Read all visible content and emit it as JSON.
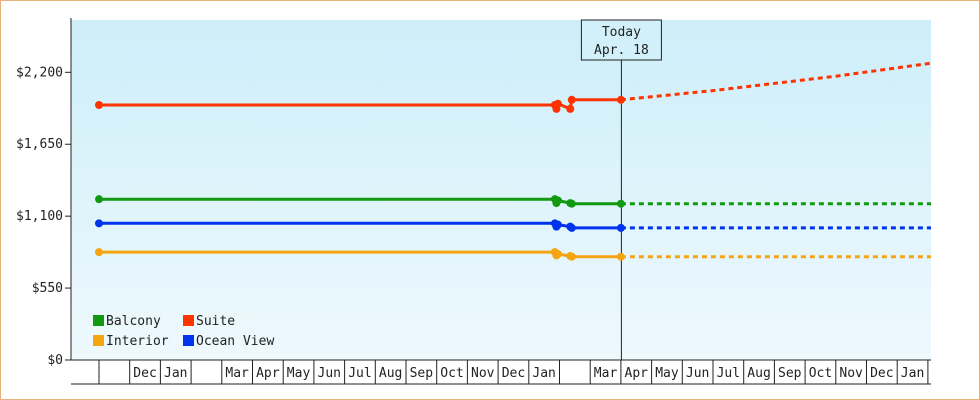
{
  "chart_data": {
    "type": "line",
    "title": "",
    "xlabel": "",
    "ylabel": "",
    "ylim": [
      0,
      2600
    ],
    "yticks": [
      0,
      550,
      1100,
      1650,
      2200
    ],
    "ytick_labels": [
      "$0",
      "$550",
      "$1,100",
      "$1,650",
      "$2,200"
    ],
    "x_months": [
      "",
      "Dec",
      "Jan",
      "",
      "Mar",
      "Apr",
      "May",
      "Jun",
      "Jul",
      "Aug",
      "Sep",
      "Oct",
      "Nov",
      "Dec",
      "Jan",
      "",
      "Mar",
      "Apr",
      "May",
      "Jun",
      "Jul",
      "Aug",
      "Sep",
      "Oct",
      "Nov",
      "Dec",
      "Jan",
      ""
    ],
    "today": {
      "line1": "Today",
      "line2": "Apr. 18",
      "month_index": 17
    },
    "legend_placement": "bottom-left",
    "grid": false,
    "background": [
      "#cdeef9",
      "#eef9fd"
    ],
    "series": [
      {
        "name": "Suite",
        "color": "#ff3300",
        "points": [
          [
            0,
            1950
          ],
          [
            14.85,
            1950
          ],
          [
            14.9,
            1920
          ],
          [
            14.95,
            1960
          ],
          [
            15.35,
            1920
          ],
          [
            15.4,
            1990
          ],
          [
            17.0,
            1990
          ]
        ],
        "forecast": [
          [
            17.0,
            1990
          ],
          [
            20.0,
            2060
          ],
          [
            24.0,
            2170
          ],
          [
            28.0,
            2270
          ]
        ]
      },
      {
        "name": "Balcony",
        "color": "#119911",
        "points": [
          [
            0,
            1230
          ],
          [
            14.85,
            1230
          ],
          [
            14.9,
            1200
          ],
          [
            14.95,
            1220
          ],
          [
            15.35,
            1200
          ],
          [
            15.4,
            1195
          ],
          [
            17.0,
            1195
          ]
        ],
        "forecast": [
          [
            17.0,
            1195
          ],
          [
            28.0,
            1195
          ]
        ]
      },
      {
        "name": "Ocean View",
        "color": "#0033ee",
        "points": [
          [
            0,
            1045
          ],
          [
            14.85,
            1045
          ],
          [
            14.9,
            1020
          ],
          [
            14.95,
            1035
          ],
          [
            15.35,
            1020
          ],
          [
            15.4,
            1010
          ],
          [
            17.0,
            1010
          ]
        ],
        "forecast": [
          [
            17.0,
            1010
          ],
          [
            28.0,
            1010
          ]
        ]
      },
      {
        "name": "Interior",
        "color": "#f5a511",
        "points": [
          [
            0,
            825
          ],
          [
            14.85,
            825
          ],
          [
            14.9,
            800
          ],
          [
            14.95,
            810
          ],
          [
            15.35,
            795
          ],
          [
            15.4,
            790
          ],
          [
            17.0,
            790
          ]
        ],
        "forecast": [
          [
            17.0,
            790
          ],
          [
            28.0,
            790
          ]
        ]
      }
    ],
    "legend": [
      {
        "name": "Balcony",
        "color": "#119911"
      },
      {
        "name": "Suite",
        "color": "#ff3300"
      },
      {
        "name": "Interior",
        "color": "#f5a511"
      },
      {
        "name": "Ocean View",
        "color": "#0033ee"
      }
    ]
  }
}
